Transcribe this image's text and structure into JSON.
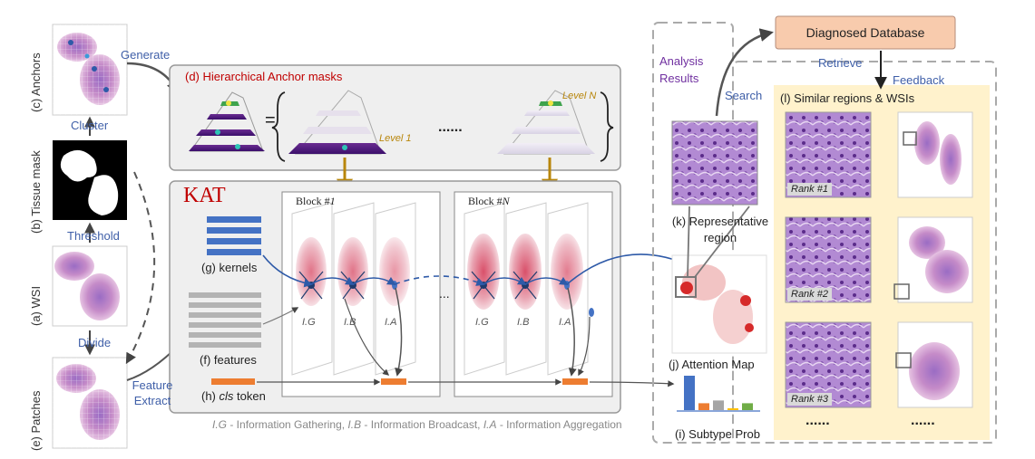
{
  "left_column": {
    "anchors_label": "(c) Anchors",
    "tissue_mask_label": "(b) Tissue mask",
    "wsi_label": "(a) WSI",
    "patches_label": "(e) Patches",
    "cluster": "Cluster",
    "threshold": "Threshold",
    "divide": "Divide",
    "generate": "Generate",
    "feature_extract_1": "Feature",
    "feature_extract_2": "Extract"
  },
  "anchor_masks": {
    "title": "(d) Hierarchical Anchor masks",
    "level1": "Level 1",
    "levelN": "Level N",
    "equals": "=",
    "ellipsis": "......"
  },
  "kat": {
    "title": "KAT",
    "block1_prefix": "Block #",
    "block1_num": "1",
    "blockN_prefix": "Block #",
    "blockN_num": "N",
    "kernels": "(g) kernels",
    "features": "(f) features",
    "cls_prefix": "(h) ",
    "cls_word": "cls",
    "cls_suffix": " token",
    "ig": "I.G",
    "ib": "I.B",
    "ia": "I.A",
    "dots": "...",
    "legend": {
      "ig": "I.G",
      "ig_text": " - Information Gathering,  ",
      "ib": "I.B",
      "ib_text": " - Information Broadcast,  ",
      "ia": "I.A",
      "ia_text": " - Information Aggregation"
    }
  },
  "right": {
    "analysis_1": "Analysis",
    "analysis_2": "Results",
    "database": "Diagnosed Database",
    "retrieve": "Retrieve",
    "feedback": "Feedback",
    "search": "Search",
    "similar": "(l) Similar regions & WSIs",
    "representative_1": "(k) Representative",
    "representative_2": "region",
    "attention": "(j) Attention Map",
    "subtype": "(i) Subtype Prob",
    "rank1": "Rank #1",
    "rank2": "Rank #2",
    "rank3": "Rank #3",
    "more1": "......",
    "more2": "......"
  },
  "chart_data": {
    "type": "bar",
    "categories": [
      "",
      "",
      "",
      "",
      ""
    ],
    "values": [
      1.0,
      0.2,
      0.28,
      0.05,
      0.2
    ],
    "colors": [
      "#4472c4",
      "#ed7d31",
      "#a5a5a5",
      "#ffc000",
      "#70ad47"
    ]
  },
  "colors": {
    "panel_bg": "#efefef",
    "panel_border": "#999999",
    "accent_blue": "#3f5fa8",
    "accent_red": "#c00000",
    "level_gold": "#b8860b",
    "db_box": "#f8cbad",
    "similar_bg": "#fff2cc",
    "cls_orange": "#ed7d31",
    "purple_text": "#7030a0",
    "kernel_blue": "#4472c4"
  }
}
